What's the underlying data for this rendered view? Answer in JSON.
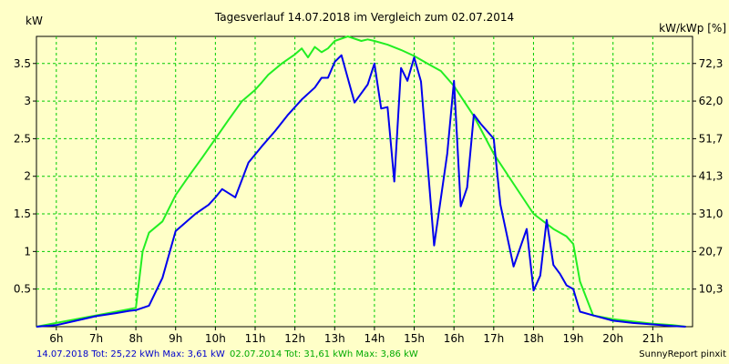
{
  "colors": {
    "background": "#ffffc8",
    "grid": "#00cc00",
    "series_2018": "#0000ee",
    "series_2014": "#22ee22",
    "footer_2018": "#0000cc",
    "footer_2014": "#00aa00"
  },
  "chart_data": {
    "type": "line",
    "title": "Tagesverlauf 14.07.2018 im Vergleich zum 02.07.2014",
    "ylabel_left": "kW",
    "ylabel_right": "kW/kWp [%]",
    "xlim": [
      5.5,
      22.0
    ],
    "ylim": [
      0,
      3.86
    ],
    "x_ticks": [
      6,
      7,
      8,
      9,
      10,
      11,
      12,
      13,
      14,
      15,
      16,
      17,
      18,
      19,
      20,
      21
    ],
    "x_tick_labels": [
      "6h",
      "7h",
      "8h",
      "9h",
      "10h",
      "11h",
      "12h",
      "13h",
      "14h",
      "15h",
      "16h",
      "17h",
      "18h",
      "19h",
      "20h",
      "21h"
    ],
    "y_ticks_left": [
      0.5,
      1,
      1.5,
      2,
      2.5,
      3,
      3.5
    ],
    "y_tick_labels_left": [
      "0.5",
      "1",
      "1.5",
      "2",
      "2.5",
      "3",
      "3.5"
    ],
    "y_tick_labels_right": [
      "10,3",
      "20,7",
      "31,0",
      "41,3",
      "51,7",
      "62,0",
      "72,3"
    ],
    "grid": true,
    "series": [
      {
        "name": "14.07.2018",
        "x": [
          5.5,
          6.0,
          6.5,
          7.0,
          7.5,
          7.83,
          8.0,
          8.33,
          8.67,
          9.0,
          9.5,
          9.83,
          10.0,
          10.17,
          10.5,
          10.83,
          11.17,
          11.5,
          11.83,
          12.17,
          12.5,
          12.67,
          12.83,
          13.0,
          13.17,
          13.5,
          13.83,
          14.0,
          14.17,
          14.33,
          14.5,
          14.67,
          14.83,
          15.0,
          15.17,
          15.5,
          15.83,
          16.0,
          16.17,
          16.33,
          16.5,
          16.67,
          17.0,
          17.17,
          17.5,
          17.83,
          18.0,
          18.17,
          18.33,
          18.5,
          18.67,
          18.83,
          19.0,
          19.17,
          19.5,
          20.0,
          20.5,
          21.0,
          21.5,
          21.83
        ],
        "values": [
          0.0,
          0.02,
          0.08,
          0.14,
          0.18,
          0.21,
          0.22,
          0.28,
          0.65,
          1.27,
          1.5,
          1.62,
          1.72,
          1.83,
          1.72,
          2.18,
          2.4,
          2.6,
          2.82,
          3.02,
          3.18,
          3.31,
          3.31,
          3.52,
          3.61,
          2.98,
          3.22,
          3.5,
          2.9,
          2.92,
          1.93,
          3.44,
          3.27,
          3.58,
          3.26,
          1.08,
          2.3,
          3.27,
          1.6,
          1.85,
          2.82,
          2.7,
          2.5,
          1.62,
          0.8,
          1.3,
          0.48,
          0.68,
          1.42,
          0.82,
          0.7,
          0.55,
          0.5,
          0.2,
          0.15,
          0.08,
          0.05,
          0.03,
          0.01,
          0.0
        ]
      },
      {
        "name": "02.07.2014",
        "x": [
          5.5,
          6.0,
          6.5,
          7.0,
          7.5,
          8.0,
          8.17,
          8.33,
          8.67,
          9.0,
          9.33,
          9.67,
          10.0,
          10.33,
          10.67,
          11.0,
          11.17,
          11.33,
          11.67,
          12.0,
          12.17,
          12.33,
          12.5,
          12.67,
          12.83,
          13.0,
          13.33,
          13.5,
          13.67,
          13.83,
          14.0,
          14.33,
          14.67,
          15.0,
          15.33,
          15.67,
          16.0,
          16.5,
          17.0,
          17.5,
          18.0,
          18.5,
          18.83,
          19.0,
          19.17,
          19.5,
          20.0,
          20.5,
          21.0,
          21.5,
          21.83
        ],
        "values": [
          0.0,
          0.05,
          0.1,
          0.15,
          0.2,
          0.25,
          1.0,
          1.25,
          1.4,
          1.75,
          2.0,
          2.25,
          2.5,
          2.75,
          3.0,
          3.15,
          3.25,
          3.35,
          3.5,
          3.62,
          3.7,
          3.58,
          3.72,
          3.65,
          3.7,
          3.8,
          3.86,
          3.83,
          3.8,
          3.82,
          3.8,
          3.75,
          3.68,
          3.6,
          3.5,
          3.4,
          3.2,
          2.8,
          2.3,
          1.9,
          1.5,
          1.3,
          1.2,
          1.1,
          0.6,
          0.15,
          0.1,
          0.07,
          0.04,
          0.02,
          0.0
        ]
      }
    ]
  },
  "footer": {
    "line_2018": "14.07.2018 Tot: 25,22 kWh Max: 3,61 kW",
    "line_2014": "02.07.2014 Tot: 31,61 kWh Max: 3,86 kW",
    "credit": "SunnyReport pinxit"
  }
}
